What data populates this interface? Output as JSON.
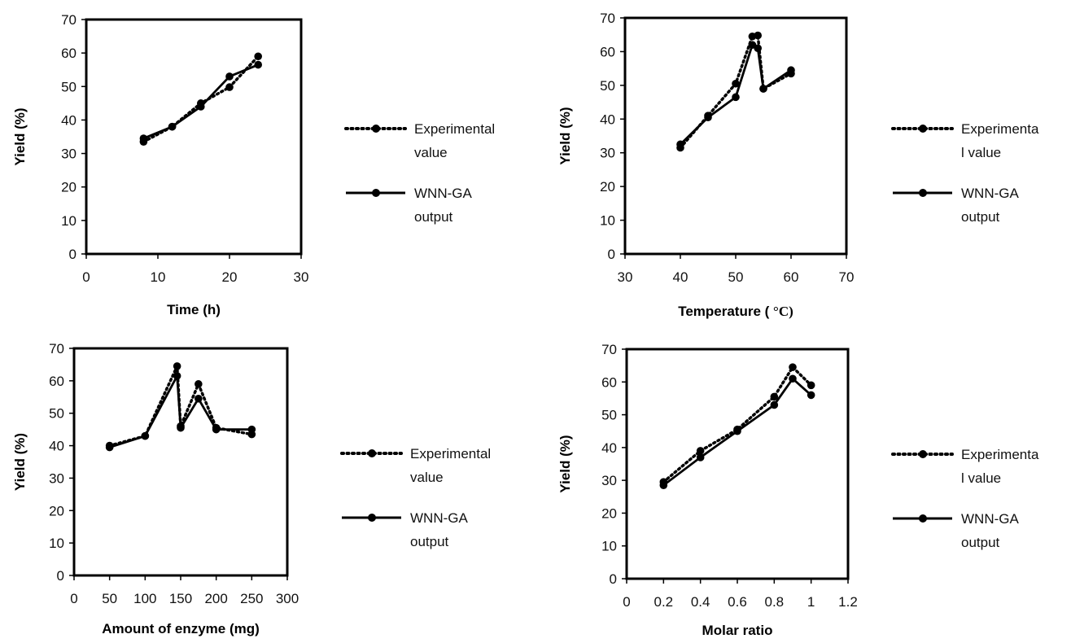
{
  "chart_data": [
    {
      "type": "line",
      "xlabel": "Time (h)",
      "ylabel": "Yield (%)",
      "xlim": [
        0,
        30
      ],
      "ylim": [
        0,
        70
      ],
      "xticks": [
        0,
        10,
        20,
        30
      ],
      "yticks": [
        0,
        10,
        20,
        30,
        40,
        50,
        60,
        70
      ],
      "grid": false,
      "legend_position": "right",
      "series": [
        {
          "name": "Experimental value",
          "legend_lines": [
            "Experimental",
            "value"
          ],
          "style": "dotted",
          "x": [
            8,
            12,
            16,
            20,
            24
          ],
          "y": [
            33.5,
            38,
            45,
            49.8,
            59
          ]
        },
        {
          "name": "WNN-GA output",
          "legend_lines": [
            "WNN-GA",
            "output"
          ],
          "style": "solid",
          "x": [
            8,
            12,
            16,
            20,
            24
          ],
          "y": [
            34.5,
            38,
            44,
            53,
            56.5
          ]
        }
      ]
    },
    {
      "type": "line",
      "xlabel": "Temperature ( °C)",
      "xlabel_prefix": "Temperature ( ",
      "xlabel_unit": "°C)",
      "ylabel": "Yield (%)",
      "xlim": [
        30,
        70
      ],
      "ylim": [
        0,
        70
      ],
      "xticks": [
        30,
        40,
        50,
        60,
        70
      ],
      "yticks": [
        0,
        10,
        20,
        30,
        40,
        50,
        60,
        70
      ],
      "grid": false,
      "legend_position": "right",
      "series": [
        {
          "name": "Experimental value",
          "legend_lines": [
            "Experimenta",
            "l value"
          ],
          "style": "dotted",
          "x": [
            40,
            45,
            50,
            53,
            54,
            55,
            60
          ],
          "y": [
            31.5,
            41,
            50.5,
            64.5,
            64.8,
            49,
            53.5
          ]
        },
        {
          "name": "WNN-GA output",
          "legend_lines": [
            "WNN-GA",
            "output"
          ],
          "style": "solid",
          "x": [
            40,
            45,
            50,
            53,
            54,
            55,
            60
          ],
          "y": [
            32.5,
            40.5,
            46.5,
            62,
            61,
            49,
            54.5
          ]
        }
      ]
    },
    {
      "type": "line",
      "xlabel": "Amount of enzyme (mg)",
      "ylabel": "Yield (%)",
      "xlim": [
        0,
        300
      ],
      "ylim": [
        0,
        70
      ],
      "xticks": [
        0,
        50,
        100,
        150,
        200,
        250,
        300
      ],
      "yticks": [
        0,
        10,
        20,
        30,
        40,
        50,
        60,
        70
      ],
      "grid": false,
      "legend_position": "right",
      "series": [
        {
          "name": "Experimental value",
          "legend_lines": [
            "Experimental",
            "value"
          ],
          "style": "dotted",
          "x": [
            50,
            100,
            145,
            150,
            175,
            200,
            250
          ],
          "y": [
            40,
            43,
            64.5,
            46,
            59,
            45.5,
            43.5
          ]
        },
        {
          "name": "WNN-GA output",
          "legend_lines": [
            "WNN-GA",
            "output"
          ],
          "style": "solid",
          "x": [
            50,
            100,
            145,
            150,
            175,
            200,
            250
          ],
          "y": [
            39.5,
            43,
            61.5,
            45.5,
            54.5,
            45,
            45
          ]
        }
      ]
    },
    {
      "type": "line",
      "xlabel": "Molar ratio",
      "ylabel": "Yield (%)",
      "xlim": [
        0,
        1.2
      ],
      "ylim": [
        0,
        70
      ],
      "xticks": [
        0,
        0.2,
        0.4,
        0.6,
        0.8,
        1,
        1.2
      ],
      "yticks": [
        0,
        10,
        20,
        30,
        40,
        50,
        60,
        70
      ],
      "grid": false,
      "legend_position": "right",
      "series": [
        {
          "name": "Experimental value",
          "legend_lines": [
            "Experimenta",
            "l value"
          ],
          "style": "dotted",
          "x": [
            0.2,
            0.4,
            0.6,
            0.8,
            0.9,
            1.0
          ],
          "y": [
            29.5,
            39,
            45.5,
            55.5,
            64.5,
            59
          ]
        },
        {
          "name": "WNN-GA output",
          "legend_lines": [
            "WNN-GA",
            "output"
          ],
          "style": "solid",
          "x": [
            0.2,
            0.4,
            0.6,
            0.8,
            0.9,
            1.0
          ],
          "y": [
            28.5,
            37,
            45,
            53,
            61,
            56
          ]
        }
      ]
    }
  ]
}
